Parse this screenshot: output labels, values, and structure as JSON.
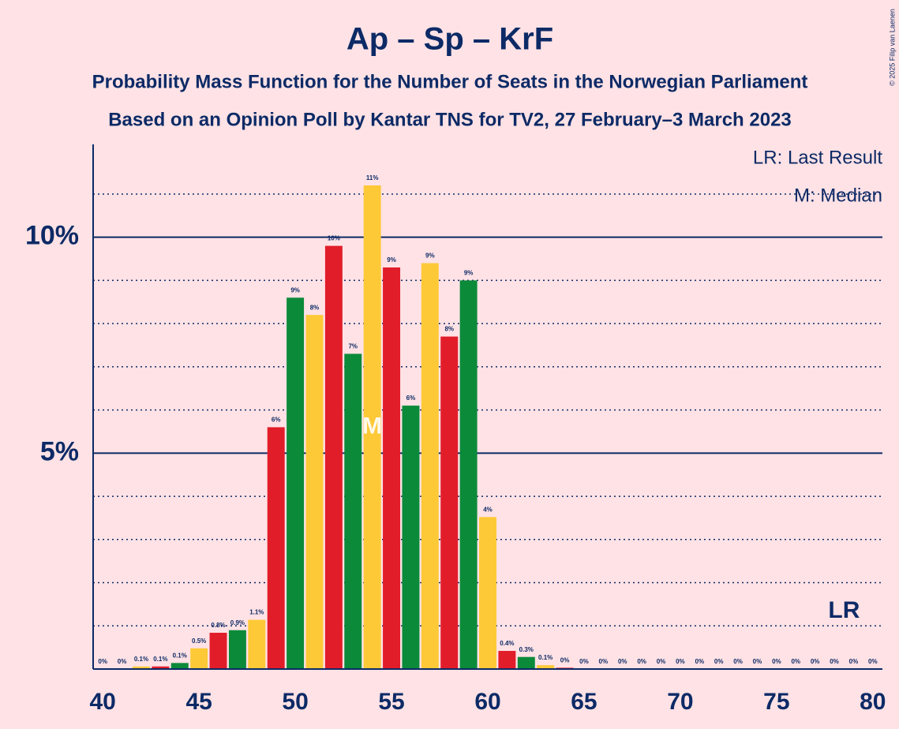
{
  "chart_data": {
    "type": "bar",
    "title": "Ap – Sp – KrF",
    "subtitle": "Probability Mass Function for the Number of Seats in the Norwegian Parliament",
    "subtitle2": "Based on an Opinion Poll by Kantar TNS for TV2, 27 February–3 March 2023",
    "copyright": "© 2025 Filip van Laenen",
    "legend": [
      "LR: Last Result",
      "M: Median"
    ],
    "x": [
      40,
      41,
      42,
      43,
      44,
      45,
      46,
      47,
      48,
      49,
      50,
      51,
      52,
      53,
      54,
      55,
      56,
      57,
      58,
      59,
      60,
      61,
      62,
      63,
      64,
      65,
      66,
      67,
      68,
      69,
      70,
      71,
      72,
      73,
      74,
      75,
      76,
      77,
      78,
      79,
      80
    ],
    "values": [
      0,
      0,
      0.06,
      0.06,
      0.14,
      0.48,
      0.84,
      0.9,
      1.14,
      5.6,
      8.6,
      8.2,
      9.8,
      7.3,
      11.2,
      9.3,
      6.1,
      9.4,
      7.7,
      9.0,
      3.52,
      0.42,
      0.28,
      0.09,
      0.03,
      0,
      0,
      0,
      0,
      0,
      0,
      0,
      0,
      0,
      0,
      0,
      0,
      0,
      0,
      0,
      0
    ],
    "value_labels": [
      "0%",
      "0%",
      "0.1%",
      "0.1%",
      "0.1%",
      "0.5%",
      "0.8%",
      "0.9%",
      "1.1%",
      "6%",
      "9%",
      "8%",
      "10%",
      "7%",
      "11%",
      "9%",
      "6%",
      "9%",
      "8%",
      "9%",
      "4%",
      "0.4%",
      "0.3%",
      "0.1%",
      "0%",
      "0%",
      "0%",
      "0%",
      "0%",
      "0%",
      "0%",
      "0%",
      "0%",
      "0%",
      "0%",
      "0%",
      "0%",
      "0%",
      "0%",
      "0%",
      "0%"
    ],
    "colors": [
      "#e21d2a",
      "#0b8a3a",
      "#fdc937",
      "#e21d2a",
      "#0b8a3a",
      "#fdc937",
      "#e21d2a",
      "#0b8a3a",
      "#fdc937",
      "#e21d2a",
      "#0b8a3a",
      "#fdc937",
      "#e21d2a",
      "#0b8a3a",
      "#fdc937",
      "#e21d2a",
      "#0b8a3a",
      "#fdc937",
      "#e21d2a",
      "#0b8a3a",
      "#fdc937",
      "#e21d2a",
      "#0b8a3a",
      "#fdc937",
      "#e21d2a",
      "#0b8a3a",
      "#fdc937",
      "#e21d2a",
      "#0b8a3a",
      "#fdc937",
      "#e21d2a",
      "#0b8a3a",
      "#fdc937",
      "#e21d2a",
      "#0b8a3a",
      "#fdc937",
      "#e21d2a",
      "#0b8a3a",
      "#fdc937",
      "#e21d2a",
      "#0b8a3a"
    ],
    "xlim": [
      39.5,
      80.5
    ],
    "xticks": [
      40,
      45,
      50,
      55,
      60,
      65,
      70,
      75,
      80
    ],
    "ylim": [
      0,
      12.15
    ],
    "yticks": [
      {
        "value": 5,
        "label": "5%"
      },
      {
        "value": 10,
        "label": "10%"
      }
    ],
    "minor_yticks": [
      1,
      2,
      3,
      4,
      6,
      7,
      8,
      9,
      11
    ],
    "median": 54,
    "median_label": "M",
    "last_result": 79,
    "last_result_label": "LR"
  }
}
